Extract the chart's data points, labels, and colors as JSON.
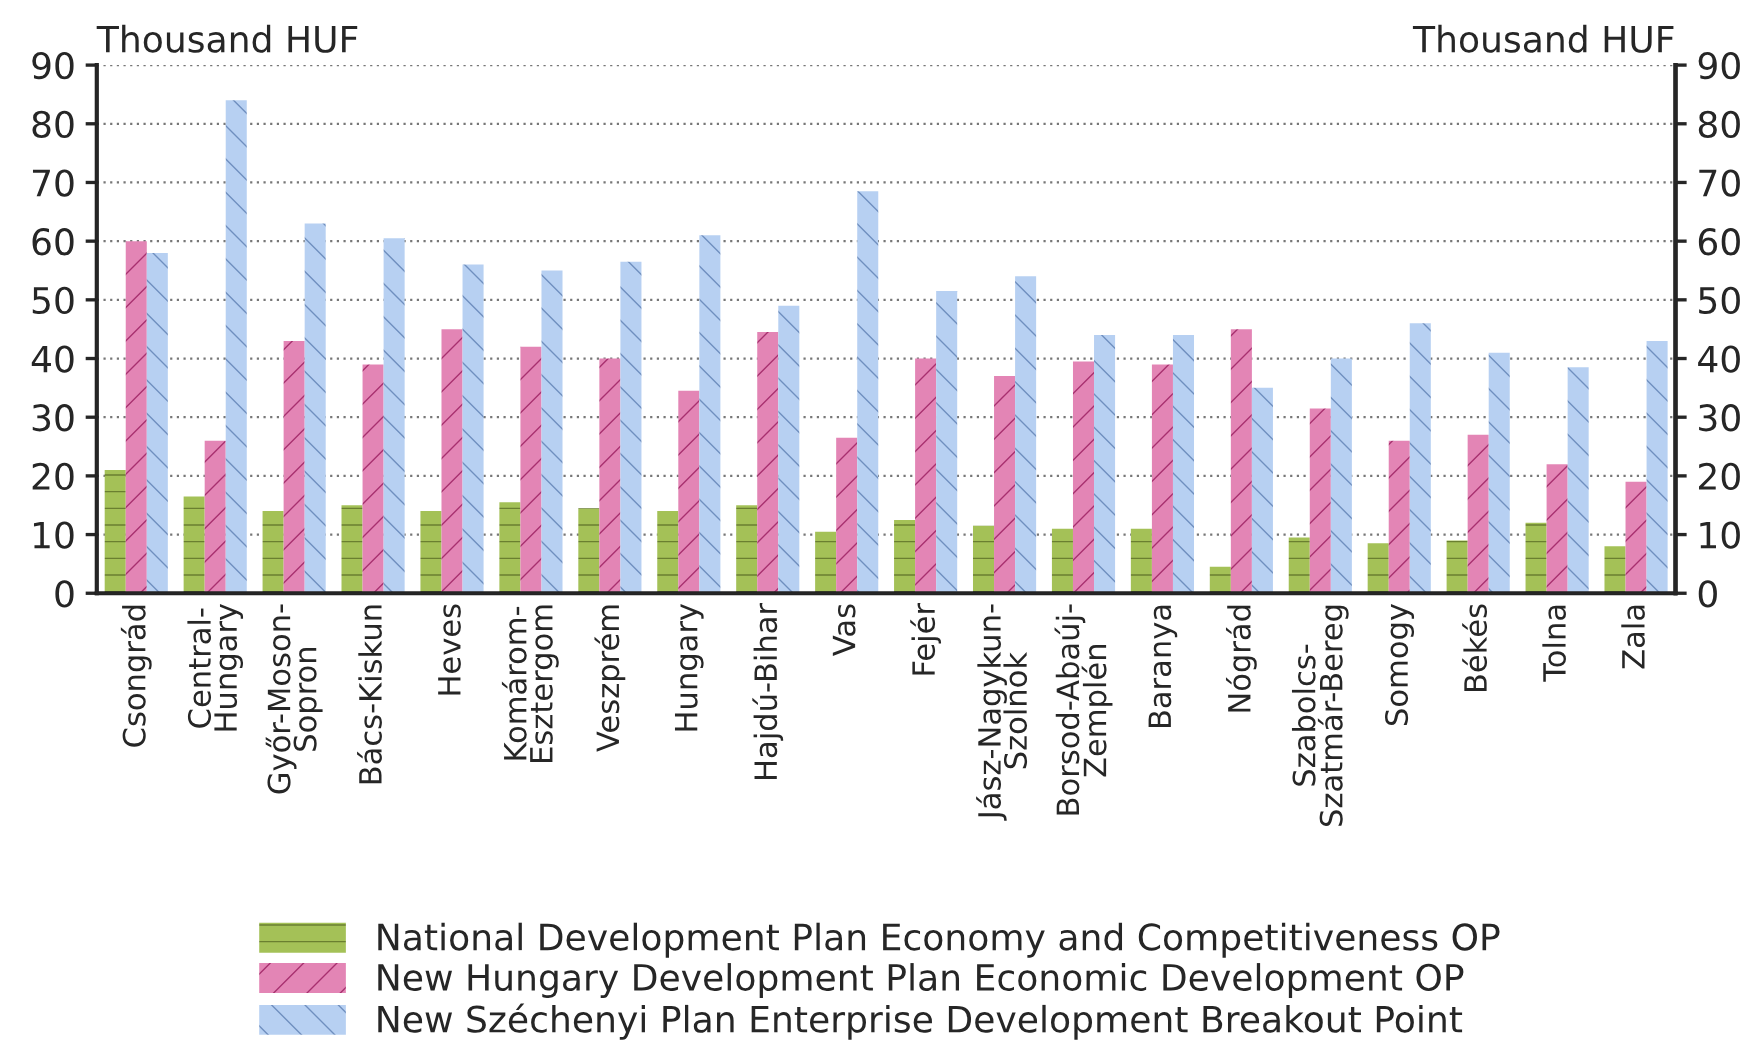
{
  "chart_data": {
    "type": "bar",
    "categories": [
      "Csongrád",
      "Central-\nHungary",
      "Győr-Moson-\nSopron",
      "Bács-Kiskun",
      "Heves",
      "Komárom-\nEsztergom",
      "Veszprém",
      "Hungary",
      "Hajdú-Bihar",
      "Vas",
      "Fejér",
      "Jász-Nagykun-\nSzolnok",
      "Borsod-Abaúj-\nZemplén",
      "Baranya",
      "Nógrád",
      "Szabolcs-\nSzatmár-Bereg",
      "Somogy",
      "Békés",
      "Tolna",
      "Zala"
    ],
    "series": [
      {
        "name": "National Development Plan Economy and Competitiveness OP",
        "color": "#a4c157",
        "values": [
          21,
          16.5,
          14,
          15,
          14,
          15.5,
          14.5,
          14,
          15,
          10.5,
          12.5,
          11.5,
          11,
          11,
          4.5,
          9.5,
          8.5,
          9,
          12,
          8
        ]
      },
      {
        "name": "New Hungary Development Plan Economic Development OP",
        "color": "#e385b5",
        "values": [
          60,
          26,
          43,
          39,
          45,
          42,
          40,
          34.5,
          44.5,
          26.5,
          40,
          37,
          39.5,
          39,
          45,
          31.5,
          26,
          27,
          22,
          19
        ]
      },
      {
        "name": "New Széchenyi Plan Enterprise Development Breakout Point",
        "color": "#b7d0f2",
        "values": [
          58,
          84,
          63,
          60.5,
          56,
          55,
          56.5,
          61,
          49,
          68.5,
          51.5,
          54,
          44,
          44,
          35,
          40,
          46,
          41,
          38.5,
          43
        ]
      }
    ],
    "ylabel": "Thousand HUF",
    "y2label": "Thousand HUF",
    "ylim": [
      0,
      90
    ],
    "yticks": [
      0,
      10,
      20,
      30,
      40,
      50,
      60,
      70,
      80,
      90
    ],
    "y2lim": [
      0,
      90
    ],
    "y2ticks": [
      0,
      10,
      20,
      30,
      40,
      50,
      60,
      70,
      80,
      90
    ],
    "grid": "y",
    "legend": "bottom"
  }
}
